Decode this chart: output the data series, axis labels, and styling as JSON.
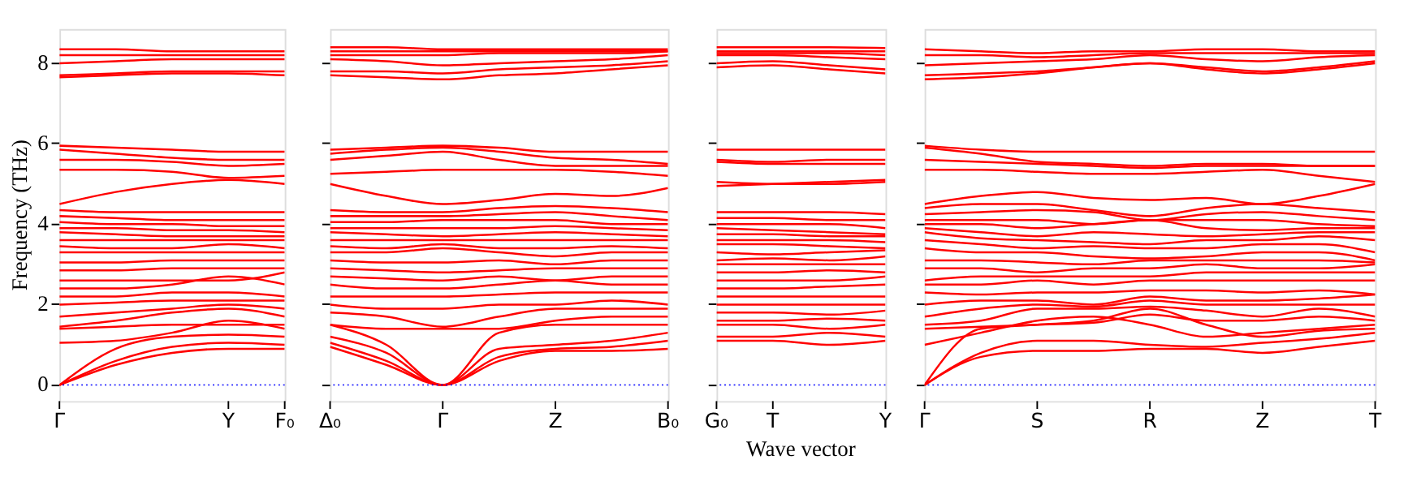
{
  "chart_data": [
    {
      "type": "line",
      "ylabel": "Frequency (THz)",
      "categories": [
        "Γ",
        null,
        null,
        "Y",
        "F₀"
      ],
      "ylim": [
        -0.4,
        8.85
      ],
      "yticks": [
        0,
        2,
        4,
        6,
        8
      ],
      "ref_lines": [
        {
          "axis": "y",
          "value": 0,
          "color": "#0000ff",
          "line_style": "dotted"
        }
      ],
      "series": [
        {
          "color": "#ff0000",
          "values": [
            0,
            0.5,
            0.8,
            0.9,
            0.9
          ]
        },
        {
          "color": "#ff0000",
          "values": [
            0,
            0.6,
            0.95,
            1.05,
            1.0
          ]
        },
        {
          "color": "#ff0000",
          "values": [
            0,
            0.9,
            1.2,
            1.25,
            1.2
          ]
        },
        {
          "color": "#ff0000",
          "values": [
            1.05,
            1.1,
            1.3,
            1.6,
            1.4
          ]
        },
        {
          "color": "#ff0000",
          "values": [
            1.4,
            1.45,
            1.5,
            1.5,
            1.5
          ]
        },
        {
          "color": "#ff0000",
          "values": [
            1.45,
            1.6,
            1.8,
            1.9,
            1.7
          ]
        },
        {
          "color": "#ff0000",
          "values": [
            1.7,
            1.8,
            1.9,
            2.0,
            1.9
          ]
        },
        {
          "color": "#ff0000",
          "values": [
            2.0,
            2.05,
            2.1,
            2.1,
            2.1
          ]
        },
        {
          "color": "#ff0000",
          "values": [
            2.2,
            2.2,
            2.3,
            2.3,
            2.2
          ]
        },
        {
          "color": "#ff0000",
          "values": [
            2.4,
            2.4,
            2.5,
            2.7,
            2.5
          ]
        },
        {
          "color": "#ff0000",
          "values": [
            2.6,
            2.6,
            2.6,
            2.6,
            2.8
          ]
        },
        {
          "color": "#ff0000",
          "values": [
            2.85,
            2.85,
            2.9,
            2.9,
            2.9
          ]
        },
        {
          "color": "#ff0000",
          "values": [
            3.05,
            3.05,
            3.1,
            3.1,
            3.1
          ]
        },
        {
          "color": "#ff0000",
          "values": [
            3.3,
            3.3,
            3.3,
            3.3,
            3.3
          ]
        },
        {
          "color": "#ff0000",
          "values": [
            3.45,
            3.4,
            3.4,
            3.5,
            3.4
          ]
        },
        {
          "color": "#ff0000",
          "values": [
            3.6,
            3.6,
            3.6,
            3.6,
            3.6
          ]
        },
        {
          "color": "#ff0000",
          "values": [
            3.8,
            3.75,
            3.7,
            3.7,
            3.7
          ]
        },
        {
          "color": "#ff0000",
          "values": [
            3.9,
            3.9,
            3.85,
            3.85,
            3.8
          ]
        },
        {
          "color": "#ff0000",
          "values": [
            4.05,
            4.0,
            4.0,
            3.95,
            3.95
          ]
        },
        {
          "color": "#ff0000",
          "values": [
            4.2,
            4.15,
            4.1,
            4.1,
            4.1
          ]
        },
        {
          "color": "#ff0000",
          "values": [
            4.35,
            4.3,
            4.3,
            4.3,
            4.3
          ]
        },
        {
          "color": "#ff0000",
          "values": [
            4.5,
            4.8,
            5.0,
            5.1,
            5.0
          ]
        },
        {
          "color": "#ff0000",
          "values": [
            5.35,
            5.35,
            5.3,
            5.15,
            5.2
          ]
        },
        {
          "color": "#ff0000",
          "values": [
            5.6,
            5.6,
            5.55,
            5.45,
            5.5
          ]
        },
        {
          "color": "#ff0000",
          "values": [
            5.85,
            5.75,
            5.65,
            5.6,
            5.6
          ]
        },
        {
          "color": "#ff0000",
          "values": [
            5.95,
            5.9,
            5.85,
            5.8,
            5.8
          ]
        },
        {
          "color": "#ff0000",
          "values": [
            7.65,
            7.7,
            7.75,
            7.75,
            7.7
          ]
        },
        {
          "color": "#ff0000",
          "values": [
            7.7,
            7.75,
            7.8,
            7.8,
            7.8
          ]
        },
        {
          "color": "#ff0000",
          "values": [
            8.0,
            8.05,
            8.1,
            8.1,
            8.1
          ]
        },
        {
          "color": "#ff0000",
          "values": [
            8.2,
            8.2,
            8.2,
            8.2,
            8.2
          ]
        },
        {
          "color": "#ff0000",
          "values": [
            8.35,
            8.35,
            8.3,
            8.3,
            8.3
          ]
        }
      ]
    },
    {
      "type": "line",
      "tick_labels": "x",
      "categories": [
        "Δ₀",
        null,
        "Γ",
        null,
        "Z",
        null,
        "B₀"
      ],
      "ylim": [
        -0.4,
        8.85
      ],
      "yticks": [
        0,
        2,
        4,
        6,
        8
      ],
      "ref_lines": [
        {
          "axis": "y",
          "value": 0,
          "color": "#0000ff",
          "line_style": "dotted"
        }
      ],
      "series": [
        {
          "color": "#ff0000",
          "values": [
            0.95,
            0.5,
            0,
            0.6,
            0.85,
            0.85,
            0.9
          ]
        },
        {
          "color": "#ff0000",
          "values": [
            1.05,
            0.6,
            0,
            0.7,
            0.9,
            0.95,
            1.1
          ]
        },
        {
          "color": "#ff0000",
          "values": [
            1.2,
            0.8,
            0,
            0.9,
            1.0,
            1.1,
            1.3
          ]
        },
        {
          "color": "#ff0000",
          "values": [
            1.5,
            1.0,
            0,
            1.3,
            1.5,
            1.5,
            1.5
          ]
        },
        {
          "color": "#ff0000",
          "values": [
            1.5,
            1.4,
            1.4,
            1.4,
            1.6,
            1.7,
            1.7
          ]
        },
        {
          "color": "#ff0000",
          "values": [
            1.8,
            1.7,
            1.45,
            1.7,
            1.9,
            1.9,
            1.9
          ]
        },
        {
          "color": "#ff0000",
          "values": [
            2.0,
            1.9,
            1.9,
            2.0,
            2.0,
            2.1,
            2.0
          ]
        },
        {
          "color": "#ff0000",
          "values": [
            2.2,
            2.2,
            2.2,
            2.25,
            2.3,
            2.3,
            2.3
          ]
        },
        {
          "color": "#ff0000",
          "values": [
            2.5,
            2.4,
            2.4,
            2.5,
            2.6,
            2.5,
            2.5
          ]
        },
        {
          "color": "#ff0000",
          "values": [
            2.7,
            2.65,
            2.6,
            2.7,
            2.6,
            2.7,
            2.7
          ]
        },
        {
          "color": "#ff0000",
          "values": [
            2.9,
            2.85,
            2.8,
            2.85,
            2.9,
            2.9,
            2.9
          ]
        },
        {
          "color": "#ff0000",
          "values": [
            3.1,
            3.05,
            3.05,
            3.1,
            3.0,
            3.1,
            3.1
          ]
        },
        {
          "color": "#ff0000",
          "values": [
            3.3,
            3.3,
            3.4,
            3.3,
            3.2,
            3.3,
            3.3
          ]
        },
        {
          "color": "#ff0000",
          "values": [
            3.45,
            3.4,
            3.5,
            3.4,
            3.4,
            3.45,
            3.4
          ]
        },
        {
          "color": "#ff0000",
          "values": [
            3.6,
            3.6,
            3.6,
            3.6,
            3.6,
            3.6,
            3.6
          ]
        },
        {
          "color": "#ff0000",
          "values": [
            3.8,
            3.75,
            3.7,
            3.75,
            3.8,
            3.75,
            3.7
          ]
        },
        {
          "color": "#ff0000",
          "values": [
            3.9,
            3.9,
            3.9,
            3.9,
            3.95,
            3.9,
            3.85
          ]
        },
        {
          "color": "#ff0000",
          "values": [
            4.05,
            4.05,
            4.1,
            4.1,
            4.1,
            4.0,
            4.0
          ]
        },
        {
          "color": "#ff0000",
          "values": [
            4.2,
            4.2,
            4.2,
            4.25,
            4.3,
            4.2,
            4.1
          ]
        },
        {
          "color": "#ff0000",
          "values": [
            4.35,
            4.3,
            4.3,
            4.4,
            4.45,
            4.4,
            4.3
          ]
        },
        {
          "color": "#ff0000",
          "values": [
            5.0,
            4.7,
            4.5,
            4.6,
            4.75,
            4.7,
            4.9
          ]
        },
        {
          "color": "#ff0000",
          "values": [
            5.25,
            5.3,
            5.35,
            5.35,
            5.35,
            5.3,
            5.2
          ]
        },
        {
          "color": "#ff0000",
          "values": [
            5.6,
            5.7,
            5.8,
            5.6,
            5.45,
            5.45,
            5.45
          ]
        },
        {
          "color": "#ff0000",
          "values": [
            5.75,
            5.85,
            5.9,
            5.8,
            5.65,
            5.6,
            5.5
          ]
        },
        {
          "color": "#ff0000",
          "values": [
            5.85,
            5.9,
            5.95,
            5.9,
            5.8,
            5.8,
            5.8
          ]
        },
        {
          "color": "#ff0000",
          "values": [
            7.7,
            7.65,
            7.6,
            7.7,
            7.75,
            7.85,
            7.95
          ]
        },
        {
          "color": "#ff0000",
          "values": [
            7.8,
            7.8,
            7.75,
            7.85,
            7.9,
            7.95,
            8.05
          ]
        },
        {
          "color": "#ff0000",
          "values": [
            8.1,
            8.05,
            7.95,
            8.0,
            8.05,
            8.1,
            8.2
          ]
        },
        {
          "color": "#ff0000",
          "values": [
            8.2,
            8.2,
            8.2,
            8.25,
            8.25,
            8.25,
            8.3
          ]
        },
        {
          "color": "#ff0000",
          "values": [
            8.3,
            8.3,
            8.3,
            8.3,
            8.3,
            8.3,
            8.3
          ]
        },
        {
          "color": "#ff0000",
          "values": [
            8.4,
            8.4,
            8.35,
            8.35,
            8.35,
            8.35,
            8.35
          ]
        }
      ]
    },
    {
      "type": "line",
      "tick_labels": "x",
      "xlabel": "Wave vector",
      "categories": [
        "G₀",
        "T",
        null,
        "Y"
      ],
      "ylim": [
        -0.4,
        8.85
      ],
      "yticks": [
        0,
        2,
        4,
        6,
        8
      ],
      "ref_lines": [
        {
          "axis": "y",
          "value": 0,
          "color": "#0000ff",
          "line_style": "dotted"
        }
      ],
      "series": [
        {
          "color": "#ff0000",
          "values": [
            1.1,
            1.1,
            1.0,
            1.1
          ]
        },
        {
          "color": "#ff0000",
          "values": [
            1.2,
            1.2,
            1.3,
            1.2
          ]
        },
        {
          "color": "#ff0000",
          "values": [
            1.5,
            1.5,
            1.4,
            1.5
          ]
        },
        {
          "color": "#ff0000",
          "values": [
            1.6,
            1.6,
            1.65,
            1.6
          ]
        },
        {
          "color": "#ff0000",
          "values": [
            1.8,
            1.8,
            1.75,
            1.85
          ]
        },
        {
          "color": "#ff0000",
          "values": [
            2.0,
            2.0,
            2.0,
            2.0
          ]
        },
        {
          "color": "#ff0000",
          "values": [
            2.2,
            2.2,
            2.2,
            2.2
          ]
        },
        {
          "color": "#ff0000",
          "values": [
            2.4,
            2.4,
            2.45,
            2.5
          ]
        },
        {
          "color": "#ff0000",
          "values": [
            2.6,
            2.6,
            2.6,
            2.7
          ]
        },
        {
          "color": "#ff0000",
          "values": [
            2.8,
            2.8,
            2.85,
            2.8
          ]
        },
        {
          "color": "#ff0000",
          "values": [
            3.0,
            3.0,
            3.0,
            3.0
          ]
        },
        {
          "color": "#ff0000",
          "values": [
            3.1,
            3.15,
            3.1,
            3.2
          ]
        },
        {
          "color": "#ff0000",
          "values": [
            3.3,
            3.25,
            3.3,
            3.35
          ]
        },
        {
          "color": "#ff0000",
          "values": [
            3.5,
            3.5,
            3.45,
            3.4
          ]
        },
        {
          "color": "#ff0000",
          "values": [
            3.6,
            3.6,
            3.6,
            3.55
          ]
        },
        {
          "color": "#ff0000",
          "values": [
            3.75,
            3.75,
            3.7,
            3.7
          ]
        },
        {
          "color": "#ff0000",
          "values": [
            3.9,
            3.85,
            3.8,
            3.75
          ]
        },
        {
          "color": "#ff0000",
          "values": [
            4.0,
            4.0,
            4.0,
            3.9
          ]
        },
        {
          "color": "#ff0000",
          "values": [
            4.15,
            4.15,
            4.1,
            4.1
          ]
        },
        {
          "color": "#ff0000",
          "values": [
            4.3,
            4.3,
            4.3,
            4.25
          ]
        },
        {
          "color": "#ff0000",
          "values": [
            4.95,
            5.0,
            5.05,
            5.1
          ]
        },
        {
          "color": "#ff0000",
          "values": [
            5.05,
            5.0,
            5.0,
            5.05
          ]
        },
        {
          "color": "#ff0000",
          "values": [
            5.55,
            5.5,
            5.5,
            5.5
          ]
        },
        {
          "color": "#ff0000",
          "values": [
            5.6,
            5.55,
            5.6,
            5.6
          ]
        },
        {
          "color": "#ff0000",
          "values": [
            5.85,
            5.85,
            5.85,
            5.85
          ]
        },
        {
          "color": "#ff0000",
          "values": [
            7.9,
            7.95,
            7.85,
            7.75
          ]
        },
        {
          "color": "#ff0000",
          "values": [
            8.0,
            8.05,
            7.95,
            7.85
          ]
        },
        {
          "color": "#ff0000",
          "values": [
            8.2,
            8.2,
            8.15,
            8.1
          ]
        },
        {
          "color": "#ff0000",
          "values": [
            8.25,
            8.25,
            8.25,
            8.2
          ]
        },
        {
          "color": "#ff0000",
          "values": [
            8.3,
            8.3,
            8.3,
            8.3
          ]
        },
        {
          "color": "#ff0000",
          "values": [
            8.4,
            8.4,
            8.4,
            8.38
          ]
        }
      ]
    },
    {
      "type": "line",
      "tick_labels": "x",
      "categories": [
        "Γ",
        null,
        "S",
        null,
        "R",
        null,
        "Z",
        null,
        "T"
      ],
      "ylim": [
        -0.4,
        8.85
      ],
      "yticks": [
        0,
        2,
        4,
        6,
        8
      ],
      "ref_lines": [
        {
          "axis": "y",
          "value": 0,
          "color": "#0000ff",
          "line_style": "dotted"
        }
      ],
      "series": [
        {
          "color": "#ff0000",
          "values": [
            0,
            0.7,
            0.85,
            0.85,
            0.9,
            0.9,
            0.8,
            0.95,
            1.1
          ]
        },
        {
          "color": "#ff0000",
          "values": [
            0,
            0.8,
            1.1,
            1.1,
            1.0,
            0.95,
            1.05,
            1.15,
            1.3
          ]
        },
        {
          "color": "#ff0000",
          "values": [
            0,
            1.4,
            1.5,
            1.6,
            1.9,
            1.5,
            1.2,
            1.35,
            1.4
          ]
        },
        {
          "color": "#ff0000",
          "values": [
            1.0,
            1.3,
            1.6,
            1.7,
            1.5,
            1.2,
            1.3,
            1.4,
            1.5
          ]
        },
        {
          "color": "#ff0000",
          "values": [
            1.4,
            1.45,
            1.5,
            1.55,
            1.75,
            1.6,
            1.6,
            1.7,
            1.6
          ]
        },
        {
          "color": "#ff0000",
          "values": [
            1.5,
            1.6,
            1.9,
            1.9,
            1.95,
            1.85,
            1.7,
            1.9,
            1.7
          ]
        },
        {
          "color": "#ff0000",
          "values": [
            1.7,
            1.9,
            2.0,
            1.95,
            2.1,
            2.0,
            2.0,
            2.0,
            2.0
          ]
        },
        {
          "color": "#ff0000",
          "values": [
            2.0,
            2.1,
            2.1,
            2.0,
            2.2,
            2.1,
            2.1,
            2.15,
            2.25
          ]
        },
        {
          "color": "#ff0000",
          "values": [
            2.3,
            2.25,
            2.3,
            2.3,
            2.35,
            2.35,
            2.3,
            2.35,
            2.25
          ]
        },
        {
          "color": "#ff0000",
          "values": [
            2.5,
            2.5,
            2.6,
            2.5,
            2.6,
            2.6,
            2.6,
            2.6,
            2.6
          ]
        },
        {
          "color": "#ff0000",
          "values": [
            2.6,
            2.7,
            2.7,
            2.7,
            2.7,
            2.8,
            2.8,
            2.8,
            2.8
          ]
        },
        {
          "color": "#ff0000",
          "values": [
            2.9,
            2.9,
            2.8,
            2.9,
            2.9,
            3.0,
            2.9,
            2.9,
            3.0
          ]
        },
        {
          "color": "#ff0000",
          "values": [
            3.1,
            3.1,
            3.05,
            3.0,
            3.1,
            3.1,
            3.1,
            3.1,
            3.05
          ]
        },
        {
          "color": "#ff0000",
          "values": [
            3.4,
            3.3,
            3.3,
            3.2,
            3.15,
            3.2,
            3.3,
            3.3,
            3.1
          ]
        },
        {
          "color": "#ff0000",
          "values": [
            3.6,
            3.5,
            3.4,
            3.45,
            3.4,
            3.4,
            3.5,
            3.5,
            3.3
          ]
        },
        {
          "color": "#ff0000",
          "values": [
            3.8,
            3.65,
            3.6,
            3.55,
            3.5,
            3.6,
            3.6,
            3.7,
            3.6
          ]
        },
        {
          "color": "#ff0000",
          "values": [
            3.9,
            3.8,
            3.7,
            3.8,
            3.75,
            3.7,
            3.75,
            3.8,
            3.8
          ]
        },
        {
          "color": "#ff0000",
          "values": [
            4.0,
            4.0,
            3.9,
            4.0,
            4.1,
            3.9,
            3.85,
            3.9,
            3.9
          ]
        },
        {
          "color": "#ff0000",
          "values": [
            4.1,
            4.1,
            4.1,
            4.0,
            4.1,
            4.1,
            4.1,
            4.0,
            3.95
          ]
        },
        {
          "color": "#ff0000",
          "values": [
            4.25,
            4.3,
            4.35,
            4.3,
            4.1,
            4.25,
            4.3,
            4.2,
            4.1
          ]
        },
        {
          "color": "#ff0000",
          "values": [
            4.4,
            4.5,
            4.5,
            4.35,
            4.2,
            4.4,
            4.5,
            4.4,
            4.3
          ]
        },
        {
          "color": "#ff0000",
          "values": [
            4.5,
            4.7,
            4.8,
            4.65,
            4.6,
            4.65,
            4.5,
            4.7,
            5.0
          ]
        },
        {
          "color": "#ff0000",
          "values": [
            5.35,
            5.35,
            5.3,
            5.25,
            5.25,
            5.3,
            5.35,
            5.2,
            5.05
          ]
        },
        {
          "color": "#ff0000",
          "values": [
            5.6,
            5.55,
            5.5,
            5.45,
            5.4,
            5.45,
            5.45,
            5.45,
            5.45
          ]
        },
        {
          "color": "#ff0000",
          "values": [
            5.9,
            5.75,
            5.55,
            5.5,
            5.45,
            5.5,
            5.5,
            5.45,
            5.45
          ]
        },
        {
          "color": "#ff0000",
          "values": [
            5.95,
            5.85,
            5.8,
            5.8,
            5.8,
            5.8,
            5.8,
            5.8,
            5.8
          ]
        },
        {
          "color": "#ff0000",
          "values": [
            7.6,
            7.65,
            7.75,
            7.9,
            8.0,
            7.85,
            7.75,
            7.85,
            8.0
          ]
        },
        {
          "color": "#ff0000",
          "values": [
            7.7,
            7.75,
            7.8,
            7.9,
            8.0,
            7.9,
            7.8,
            7.9,
            8.05
          ]
        },
        {
          "color": "#ff0000",
          "values": [
            7.95,
            8.0,
            8.05,
            8.1,
            8.2,
            8.1,
            8.05,
            8.15,
            8.2
          ]
        },
        {
          "color": "#ff0000",
          "values": [
            8.2,
            8.2,
            8.15,
            8.2,
            8.25,
            8.25,
            8.25,
            8.25,
            8.25
          ]
        },
        {
          "color": "#ff0000",
          "values": [
            8.35,
            8.3,
            8.25,
            8.3,
            8.3,
            8.35,
            8.35,
            8.3,
            8.3
          ]
        }
      ]
    }
  ]
}
